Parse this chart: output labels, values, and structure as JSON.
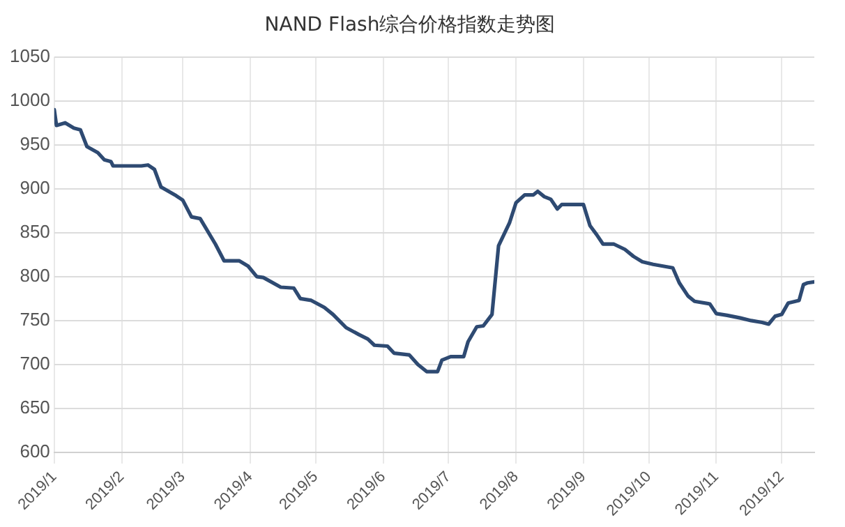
{
  "chart_data": {
    "type": "line",
    "title": "NAND Flash综合价格指数走势图",
    "x": [
      "2019-01-01",
      "2019-01-02",
      "2019-01-06",
      "2019-01-10",
      "2019-01-13",
      "2019-01-16",
      "2019-01-21",
      "2019-01-24",
      "2019-01-27",
      "2019-01-28",
      "2019-02-10",
      "2019-02-13",
      "2019-02-16",
      "2019-02-19",
      "2019-02-26",
      "2019-03-01",
      "2019-03-05",
      "2019-03-09",
      "2019-03-16",
      "2019-03-20",
      "2019-03-27",
      "2019-03-31",
      "2019-04-04",
      "2019-04-07",
      "2019-04-15",
      "2019-04-21",
      "2019-04-24",
      "2019-04-29",
      "2019-05-05",
      "2019-05-09",
      "2019-05-15",
      "2019-05-21",
      "2019-05-25",
      "2019-05-28",
      "2019-06-03",
      "2019-06-06",
      "2019-06-13",
      "2019-06-17",
      "2019-06-21",
      "2019-06-26",
      "2019-06-28",
      "2019-07-02",
      "2019-07-08",
      "2019-07-10",
      "2019-07-14",
      "2019-07-17",
      "2019-07-21",
      "2019-07-24",
      "2019-07-29",
      "2019-08-01",
      "2019-08-05",
      "2019-08-09",
      "2019-08-11",
      "2019-08-14",
      "2019-08-17",
      "2019-08-20",
      "2019-08-22",
      "2019-09-01",
      "2019-09-04",
      "2019-09-07",
      "2019-09-10",
      "2019-09-15",
      "2019-09-20",
      "2019-09-24",
      "2019-09-28",
      "2019-10-03",
      "2019-10-12",
      "2019-10-15",
      "2019-10-19",
      "2019-10-22",
      "2019-10-29",
      "2019-11-01",
      "2019-11-06",
      "2019-11-12",
      "2019-11-17",
      "2019-11-22",
      "2019-11-25",
      "2019-11-28",
      "2019-12-01",
      "2019-12-04",
      "2019-12-09",
      "2019-12-11",
      "2019-12-13",
      "2019-12-16"
    ],
    "series": [
      {
        "color": "#2e4a72",
        "values": [
          990,
          972,
          975,
          969,
          967,
          948,
          941,
          933,
          931,
          926,
          926,
          927,
          922,
          902,
          892,
          887,
          868,
          866,
          837,
          818,
          818,
          812,
          800,
          799,
          788,
          787,
          775,
          773,
          765,
          757,
          742,
          734,
          729,
          722,
          721,
          713,
          711,
          700,
          692,
          692,
          705,
          709,
          709,
          726,
          743,
          744,
          757,
          835,
          861,
          884,
          893,
          893,
          897,
          891,
          888,
          877,
          882,
          882,
          858,
          848,
          837,
          837,
          831,
          823,
          817,
          814,
          810,
          793,
          778,
          772,
          769,
          758,
          756,
          753,
          750,
          748,
          746,
          755,
          757,
          770,
          773,
          791,
          793,
          794
        ]
      }
    ],
    "xlim": [
      "2019-01-01",
      "2019-12-16"
    ],
    "xticks": [
      {
        "value": "2019-01-01",
        "label": "2019/1"
      },
      {
        "value": "2019-02-01",
        "label": "2019/2"
      },
      {
        "value": "2019-03-01",
        "label": "2019/3"
      },
      {
        "value": "2019-04-01",
        "label": "2019/4"
      },
      {
        "value": "2019-05-01",
        "label": "2019/5"
      },
      {
        "value": "2019-06-01",
        "label": "2019/6"
      },
      {
        "value": "2019-07-01",
        "label": "2019/7"
      },
      {
        "value": "2019-08-01",
        "label": "2019/8"
      },
      {
        "value": "2019-09-01",
        "label": "2019/9"
      },
      {
        "value": "2019-10-01",
        "label": "2019/10"
      },
      {
        "value": "2019-11-01",
        "label": "2019/11"
      },
      {
        "value": "2019-12-01",
        "label": "2019/12"
      }
    ],
    "ylim": [
      600,
      1050
    ],
    "yticks": [
      600,
      650,
      700,
      750,
      800,
      850,
      900,
      950,
      1000,
      1050
    ],
    "grid": true,
    "legend": false,
    "marker": "none",
    "line_style": "solid"
  }
}
